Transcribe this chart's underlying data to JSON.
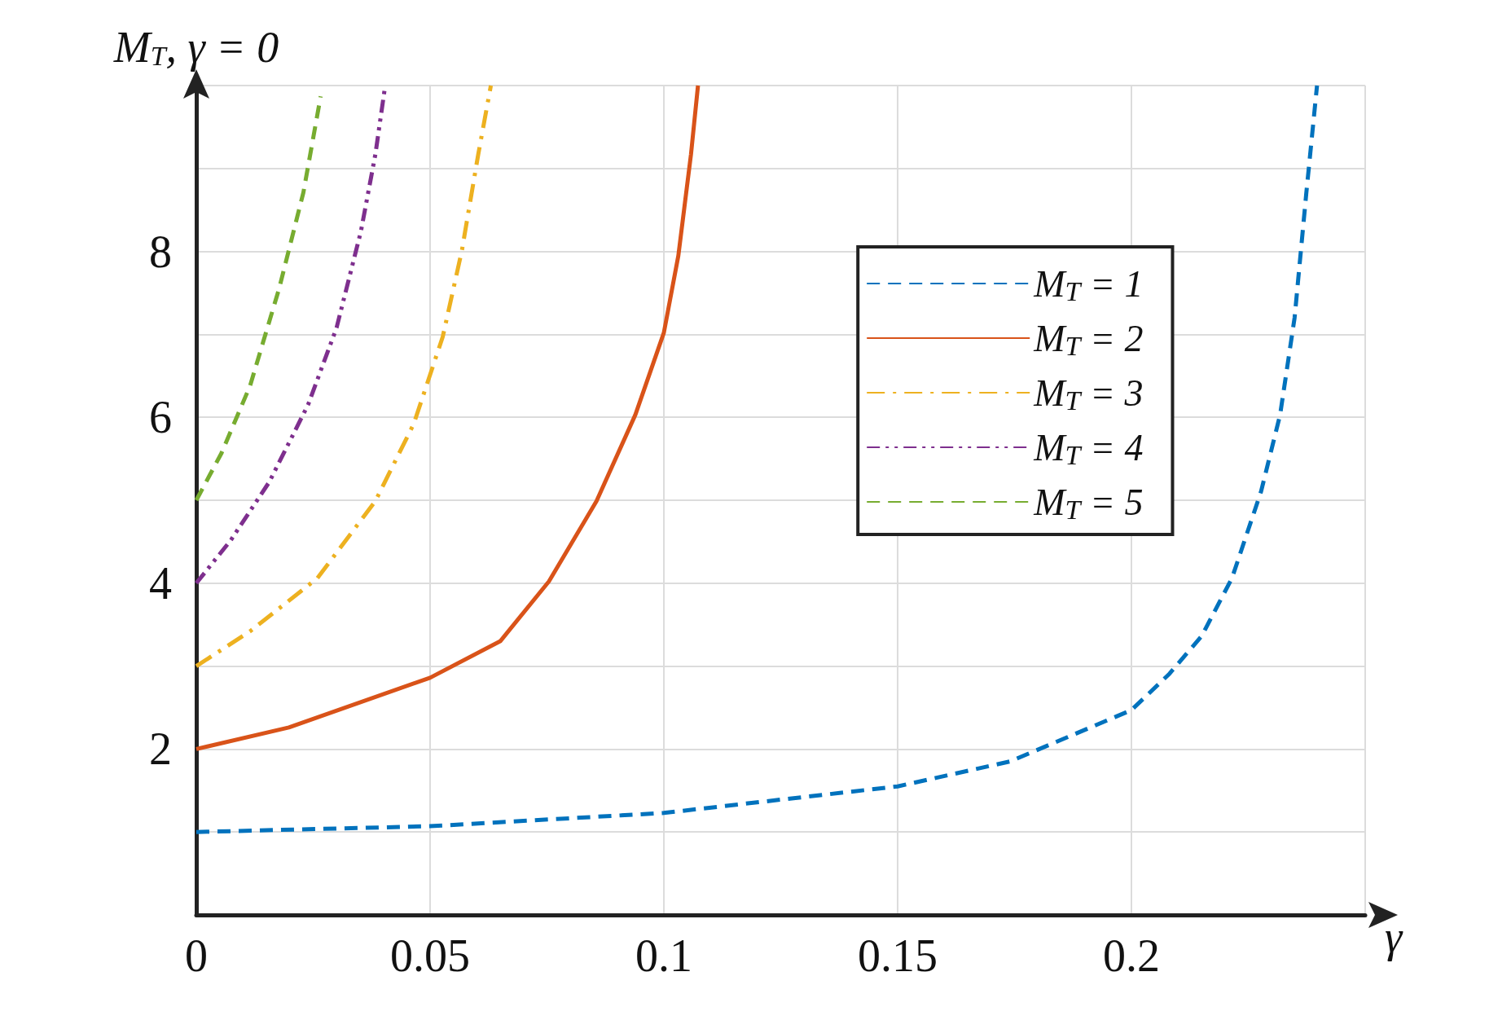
{
  "chart_data": {
    "type": "line",
    "ylabel": "M$_{T}$, γ = 0",
    "xlabel": "γ",
    "xlim": [
      0,
      0.25
    ],
    "xticks": [
      0,
      0.05,
      0.1,
      0.15,
      0.2,
      {
        "value": 0.25,
        "label": null
      }
    ],
    "ylim": [
      0,
      10
    ],
    "yticks": [
      {
        "value": 0,
        "label": null
      },
      {
        "value": 1,
        "label": null
      },
      2,
      {
        "value": 3,
        "label": null
      },
      4,
      {
        "value": 5,
        "label": null
      },
      6,
      {
        "value": 7,
        "label": null
      },
      8,
      {
        "value": 9,
        "label": null
      },
      {
        "value": 10,
        "label": null
      }
    ],
    "grid": true,
    "legend": "top right",
    "marker": "none",
    "series": [
      {
        "name": "M$_{T}$ = 1",
        "color": "#0072bd",
        "line_style": "dashed",
        "x": [
          0,
          0.05,
          0.1,
          0.15,
          0.174,
          0.2,
          0.208,
          0.215,
          0.2215,
          0.2277,
          0.2318,
          0.2349,
          0.2374,
          0.2397
        ],
        "values": [
          1,
          1.07,
          1.23,
          1.55,
          1.85,
          2.47,
          2.9,
          3.36,
          4.06,
          5.1,
          6.03,
          7.2,
          8.7,
          10
        ]
      },
      {
        "name": "M$_{T}$ = 2",
        "color": "#d95319",
        "line_style": "solid",
        "x": [
          0,
          0.0198,
          0.05,
          0.065,
          0.0754,
          0.0856,
          0.0939,
          0.1,
          0.1031,
          0.1058,
          0.1073
        ],
        "values": [
          2,
          2.26,
          2.86,
          3.3,
          4.02,
          4.99,
          6.03,
          7.02,
          7.95,
          9.17,
          10
        ]
      },
      {
        "name": "M$_{T}$ = 3",
        "color": "#edb120",
        "line_style": "dashdot",
        "x": [
          0,
          0.0115,
          0.0259,
          0.0383,
          0.0465,
          0.0527,
          0.0568,
          0.0603,
          0.063
        ],
        "values": [
          3,
          3.42,
          4.06,
          4.99,
          5.92,
          6.97,
          8.01,
          9.17,
          10
        ]
      },
      {
        "name": "M$_{T}$ = 4",
        "color": "#7e2f8e",
        "line_style": "dashdotdot",
        "x": [
          0,
          0.0074,
          0.0156,
          0.0239,
          0.03,
          0.0352,
          0.0383,
          0.0404
        ],
        "values": [
          4,
          4.52,
          5.22,
          6.15,
          7.08,
          8.24,
          9.17,
          10
        ]
      },
      {
        "name": "M$_{T}$ = 5",
        "color": "#77ac30",
        "line_style": "dashed",
        "x": [
          0,
          0.0054,
          0.0115,
          0.0177,
          0.0229,
          0.0266
        ],
        "values": [
          5,
          5.57,
          6.38,
          7.55,
          8.71,
          9.87
        ]
      }
    ]
  }
}
